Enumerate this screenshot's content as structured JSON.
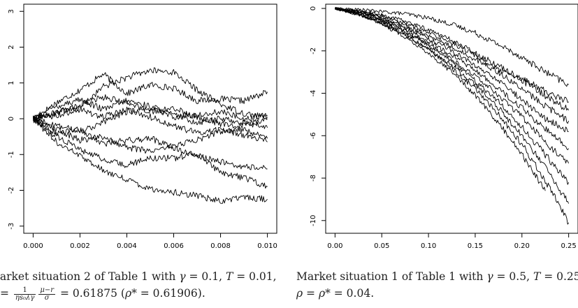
{
  "figures": [
    {
      "chart_data": {
        "type": "line",
        "xlim": [
          -0.0004,
          0.0104
        ],
        "ylim": [
          -3.2,
          3.2
        ],
        "x_ticks": [
          0.0,
          0.002,
          0.004,
          0.006,
          0.008,
          0.01
        ],
        "x_tick_labels": [
          "0.000",
          "0.002",
          "0.004",
          "0.006",
          "0.008",
          "0.010"
        ],
        "y_ticks": [
          -3,
          -2,
          -1,
          0,
          1,
          2,
          3
        ],
        "y_tick_labels": [
          "-3",
          "-2",
          "-1",
          "0",
          "1",
          "2",
          "3"
        ],
        "grid": false,
        "title": "",
        "xlabel": "",
        "ylabel": "",
        "line_color": "#000000",
        "series": [
          {
            "x": [
              0,
              0.001,
              0.002,
              0.003,
              0.004,
              0.005,
              0.006,
              0.007,
              0.008,
              0.009,
              0.01
            ],
            "y": [
              0,
              0.45,
              0.8,
              1.25,
              0.7,
              0.95,
              0.85,
              0.5,
              0.55,
              0.5,
              0.75
            ]
          },
          {
            "x": [
              0,
              0.001,
              0.002,
              0.003,
              0.004,
              0.005,
              0.006,
              0.007,
              0.008,
              0.009,
              0.01
            ],
            "y": [
              0,
              0.2,
              0.3,
              0.9,
              1.15,
              1.35,
              1.3,
              0.8,
              0.4,
              0.15,
              0.05
            ]
          },
          {
            "x": [
              0,
              0.001,
              0.002,
              0.003,
              0.004,
              0.005,
              0.006,
              0.007,
              0.008,
              0.009,
              0.01
            ],
            "y": [
              0,
              0.35,
              0.55,
              0.25,
              0.5,
              0.35,
              0.1,
              -0.1,
              0.0,
              -0.1,
              -0.25
            ]
          },
          {
            "x": [
              0,
              0.001,
              0.002,
              0.003,
              0.004,
              0.005,
              0.006,
              0.007,
              0.008,
              0.009,
              0.01
            ],
            "y": [
              0,
              0.1,
              0.25,
              0.05,
              0.25,
              0.05,
              -0.2,
              -0.4,
              -0.3,
              -0.45,
              -0.65
            ]
          },
          {
            "x": [
              0,
              0.001,
              0.002,
              0.003,
              0.004,
              0.005,
              0.006,
              0.007,
              0.008,
              0.009,
              0.01
            ],
            "y": [
              0,
              -0.2,
              -0.35,
              -0.1,
              0.2,
              0.3,
              0.05,
              0.1,
              0.2,
              0.0,
              0.1
            ]
          },
          {
            "x": [
              0,
              0.001,
              0.002,
              0.003,
              0.004,
              0.005,
              0.006,
              0.007,
              0.008,
              0.009,
              0.01
            ],
            "y": [
              0,
              -0.3,
              -0.6,
              -0.5,
              -0.8,
              -0.9,
              -0.75,
              -0.6,
              -0.35,
              -0.3,
              -0.55
            ]
          },
          {
            "x": [
              0,
              0.001,
              0.002,
              0.003,
              0.004,
              0.005,
              0.006,
              0.007,
              0.008,
              0.009,
              0.01
            ],
            "y": [
              0,
              -0.4,
              -0.3,
              -0.7,
              -0.6,
              -0.55,
              -0.8,
              -1.05,
              -1.2,
              -1.35,
              -1.4
            ]
          },
          {
            "x": [
              0,
              0.001,
              0.002,
              0.003,
              0.004,
              0.005,
              0.006,
              0.007,
              0.008,
              0.009,
              0.01
            ],
            "y": [
              0,
              -0.5,
              -0.85,
              -1.15,
              -1.3,
              -1.1,
              -1.1,
              -1.0,
              -1.5,
              -1.65,
              -1.9
            ]
          },
          {
            "x": [
              0,
              0.001,
              0.002,
              0.003,
              0.004,
              0.005,
              0.006,
              0.007,
              0.008,
              0.009,
              0.01
            ],
            "y": [
              0,
              -0.65,
              -1.05,
              -1.45,
              -1.7,
              -1.95,
              -2.05,
              -2.15,
              -2.3,
              -2.2,
              -2.25
            ]
          },
          {
            "x": [
              0,
              0.001,
              0.002,
              0.003,
              0.004,
              0.005,
              0.006,
              0.007,
              0.008,
              0.009,
              0.01
            ],
            "y": [
              0,
              0.15,
              0.4,
              0.6,
              0.45,
              0.2,
              0.3,
              0.05,
              -0.15,
              -0.2,
              0.0
            ]
          }
        ]
      },
      "caption": {
        "line1": [
          "Market situation 2 of Table 1 with ",
          "γ",
          " = 0.1, ",
          "T",
          " = 0.01,"
        ],
        "line2": [
          "= ",
          "1",
          "ηs₀λγ",
          "μ−r",
          "σ",
          " = 0.61875 (",
          "ρ",
          "* = 0.61906)."
        ]
      }
    },
    {
      "chart_data": {
        "type": "line",
        "xlim": [
          -0.01,
          0.26
        ],
        "ylim": [
          -10.6,
          0.2
        ],
        "x_ticks": [
          0.0,
          0.05,
          0.1,
          0.15,
          0.2,
          0.25
        ],
        "x_tick_labels": [
          "0.00",
          "0.05",
          "0.10",
          "0.15",
          "0.20",
          "0.25"
        ],
        "y_ticks": [
          0,
          -2,
          -4,
          -6,
          -8,
          -10
        ],
        "y_tick_labels": [
          "0",
          "-2",
          "-4",
          "-6",
          "-8",
          "-10"
        ],
        "grid": false,
        "title": "",
        "xlabel": "",
        "ylabel": "",
        "line_color": "#000000",
        "series": [
          {
            "x": [
              0,
              0.025,
              0.05,
              0.075,
              0.1,
              0.125,
              0.15,
              0.175,
              0.2,
              0.225,
              0.25
            ],
            "y": [
              0,
              -0.05,
              -0.15,
              -0.25,
              -0.45,
              -0.75,
              -1.15,
              -1.7,
              -2.3,
              -3.0,
              -3.6
            ]
          },
          {
            "x": [
              0,
              0.025,
              0.05,
              0.075,
              0.1,
              0.125,
              0.15,
              0.175,
              0.2,
              0.225,
              0.25
            ],
            "y": [
              0,
              -0.1,
              -0.3,
              -0.6,
              -1.0,
              -1.5,
              -2.1,
              -2.7,
              -3.3,
              -3.9,
              -4.4
            ]
          },
          {
            "x": [
              0,
              0.025,
              0.05,
              0.075,
              0.1,
              0.125,
              0.15,
              0.175,
              0.2,
              0.225,
              0.25
            ],
            "y": [
              0,
              -0.15,
              -0.35,
              -0.7,
              -1.15,
              -1.6,
              -2.2,
              -2.9,
              -3.4,
              -4.1,
              -4.8
            ]
          },
          {
            "x": [
              0,
              0.025,
              0.05,
              0.075,
              0.1,
              0.125,
              0.15,
              0.175,
              0.2,
              0.225,
              0.25
            ],
            "y": [
              0,
              -0.12,
              -0.4,
              -0.8,
              -1.3,
              -1.8,
              -2.4,
              -3.0,
              -3.8,
              -4.6,
              -5.3
            ]
          },
          {
            "x": [
              0,
              0.025,
              0.05,
              0.075,
              0.1,
              0.125,
              0.15,
              0.175,
              0.2,
              0.225,
              0.25
            ],
            "y": [
              0,
              -0.2,
              -0.5,
              -0.9,
              -1.4,
              -2.0,
              -2.7,
              -3.4,
              -4.3,
              -5.2,
              -5.8
            ]
          },
          {
            "x": [
              0,
              0.025,
              0.05,
              0.075,
              0.1,
              0.125,
              0.15,
              0.175,
              0.2,
              0.225,
              0.25
            ],
            "y": [
              0,
              -0.18,
              -0.45,
              -0.95,
              -1.55,
              -2.2,
              -2.9,
              -3.8,
              -4.7,
              -5.7,
              -6.6
            ]
          },
          {
            "x": [
              0,
              0.025,
              0.05,
              0.075,
              0.1,
              0.125,
              0.15,
              0.175,
              0.2,
              0.225,
              0.25
            ],
            "y": [
              0,
              -0.25,
              -0.6,
              -1.1,
              -1.7,
              -2.4,
              -3.2,
              -4.1,
              -5.1,
              -6.3,
              -7.3
            ]
          },
          {
            "x": [
              0,
              0.025,
              0.05,
              0.075,
              0.1,
              0.125,
              0.15,
              0.175,
              0.2,
              0.225,
              0.25
            ],
            "y": [
              0,
              -0.2,
              -0.55,
              -1.05,
              -1.75,
              -2.5,
              -3.4,
              -4.4,
              -5.6,
              -6.9,
              -8.2
            ]
          },
          {
            "x": [
              0,
              0.025,
              0.05,
              0.075,
              0.1,
              0.125,
              0.15,
              0.175,
              0.2,
              0.225,
              0.25
            ],
            "y": [
              0,
              -0.3,
              -0.7,
              -1.25,
              -1.95,
              -2.7,
              -3.6,
              -4.7,
              -6.0,
              -7.5,
              -9.2
            ]
          },
          {
            "x": [
              0,
              0.025,
              0.05,
              0.075,
              0.1,
              0.125,
              0.15,
              0.175,
              0.2,
              0.225,
              0.25
            ],
            "y": [
              0,
              -0.28,
              -0.65,
              -1.2,
              -1.9,
              -2.8,
              -3.8,
              -5.0,
              -6.4,
              -8.1,
              -10.1
            ]
          },
          {
            "x": [
              0,
              0.025,
              0.05,
              0.075,
              0.1,
              0.125,
              0.15,
              0.175,
              0.2,
              0.225
            ],
            "y": [
              0,
              -0.3,
              -0.75,
              -1.35,
              -2.1,
              -3.0,
              -4.1,
              -5.4,
              -6.9,
              -8.6
            ]
          }
        ]
      },
      "caption": {
        "line1": [
          "Market situation 1 of Table 1 with ",
          "γ",
          " = 0.5, ",
          "T",
          " = 0.25,"
        ],
        "line2": [
          "ρ",
          " = ",
          "ρ",
          "* = 0.04."
        ]
      }
    }
  ]
}
